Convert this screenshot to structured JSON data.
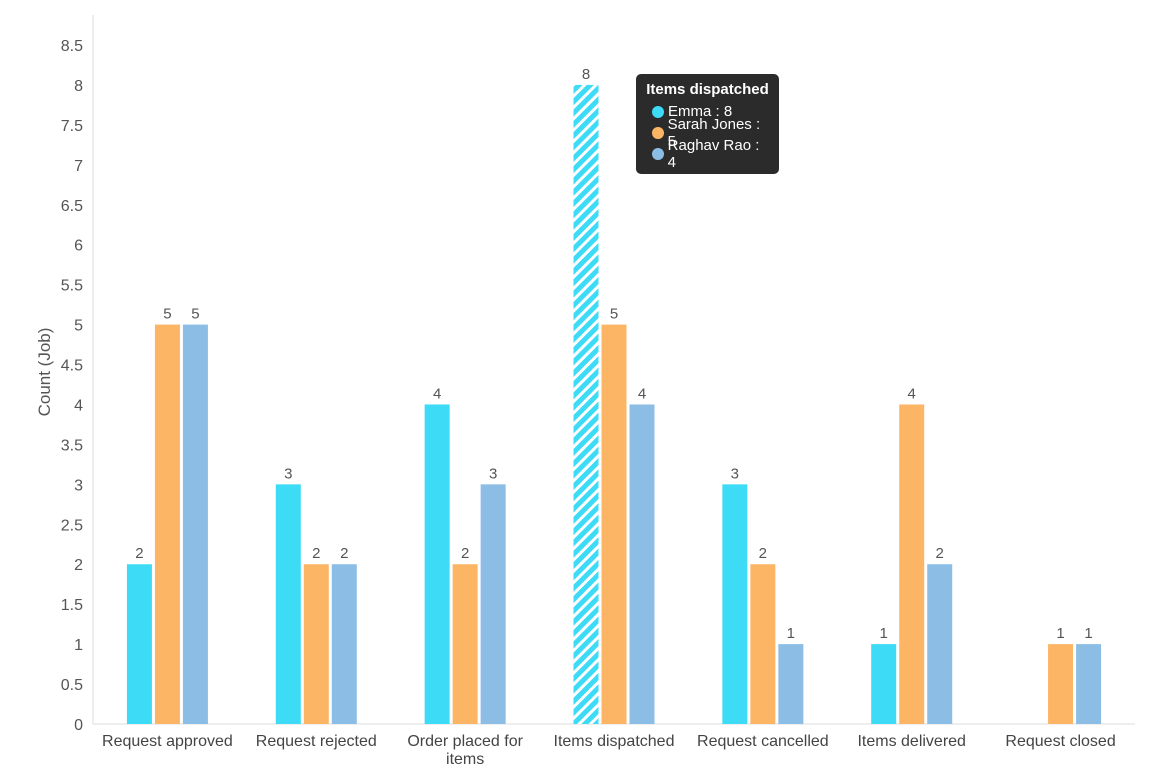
{
  "chart_data": {
    "type": "bar",
    "categories": [
      "Request approved",
      "Request rejected",
      "Order placed for items",
      "Items dispatched",
      "Request cancelled",
      "Items delivered",
      "Request closed"
    ],
    "series": [
      {
        "name": "Emma",
        "color": "#3ddbf5",
        "values": [
          2,
          3,
          4,
          8,
          3,
          1,
          0
        ]
      },
      {
        "name": "Sarah Jones",
        "color": "#fbb565",
        "values": [
          5,
          2,
          2,
          5,
          2,
          4,
          1
        ]
      },
      {
        "name": "Raghav Rao",
        "color": "#8bbde5",
        "values": [
          5,
          2,
          3,
          4,
          1,
          2,
          1
        ]
      }
    ],
    "ylabel": "Count (Job)",
    "xlabel": "",
    "ylim": [
      0,
      8.5
    ],
    "yticks": [
      "0",
      "0.5",
      "1",
      "1.5",
      "2",
      "2.5",
      "3",
      "3.5",
      "4",
      "4.5",
      "5",
      "5.5",
      "6",
      "6.5",
      "7",
      "7.5",
      "8",
      "8.5"
    ],
    "grid": false,
    "legend": "none",
    "highlighted_bar": {
      "series": "Emma",
      "category": "Items dispatched"
    }
  },
  "tooltip": {
    "title": "Items dispatched",
    "rows": [
      {
        "text": "Emma : 8",
        "color": "#3ddbf5"
      },
      {
        "text": "Sarah Jones : 5",
        "color": "#fbb565"
      },
      {
        "text": "Raghav Rao : 4",
        "color": "#8bbde5"
      }
    ]
  }
}
